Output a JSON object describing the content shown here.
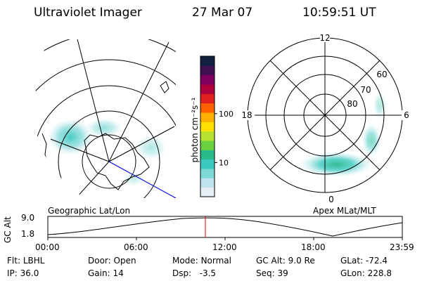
{
  "header": {
    "instrument": "Ultraviolet Imager",
    "date": "27 Mar 07",
    "time": "10:59:51 UT"
  },
  "left_map": {
    "caption": "Geographic Lat/Lon"
  },
  "colorbar": {
    "unit_label": "photon cm⁻²s⁻¹",
    "ticks": [
      "100",
      "10"
    ],
    "tick_values": [
      100,
      10
    ],
    "range": [
      2,
      1500
    ],
    "scale": "log",
    "colors": [
      "#e6f0f5",
      "#bfe3ee",
      "#7fd8d8",
      "#3cc9c0",
      "#2ab98a",
      "#6ad040",
      "#b8e030",
      "#ffe000",
      "#ffb000",
      "#ff6000",
      "#e02020",
      "#b00040",
      "#800060",
      "#401050",
      "#102040"
    ]
  },
  "right_polar": {
    "caption": "Apex  MLat/MLT",
    "mlt_labels": {
      "top": "12",
      "right": "6",
      "bottom": "0",
      "left": "18"
    },
    "lat_labels": [
      "60",
      "70",
      "80"
    ]
  },
  "altitude_plot": {
    "ylabel": "GC Alt",
    "yticks": [
      "9.0",
      "1.8"
    ],
    "xticks": [
      "00:00",
      "06:00",
      "12:00",
      "18:00",
      "23:59"
    ],
    "marker_color": "#e00000",
    "curve_color": "#000000"
  },
  "footer": {
    "row1": [
      {
        "label": "Flt:",
        "value": "LBHL"
      },
      {
        "label": "Door:",
        "value": "Open"
      },
      {
        "label": "Mode:",
        "value": "Normal"
      },
      {
        "label": "GC Alt:",
        "value": "9.0 Re"
      },
      {
        "label": "GLat:",
        "value": "-72.4"
      }
    ],
    "row2": [
      {
        "label": "IP:",
        "value": "36.0"
      },
      {
        "label": "Gain:",
        "value": "14"
      },
      {
        "label": "Dsp:",
        "value": "-3.5"
      },
      {
        "label": "Seq:",
        "value": "39"
      },
      {
        "label": "GLon:",
        "value": "228.8"
      }
    ]
  }
}
